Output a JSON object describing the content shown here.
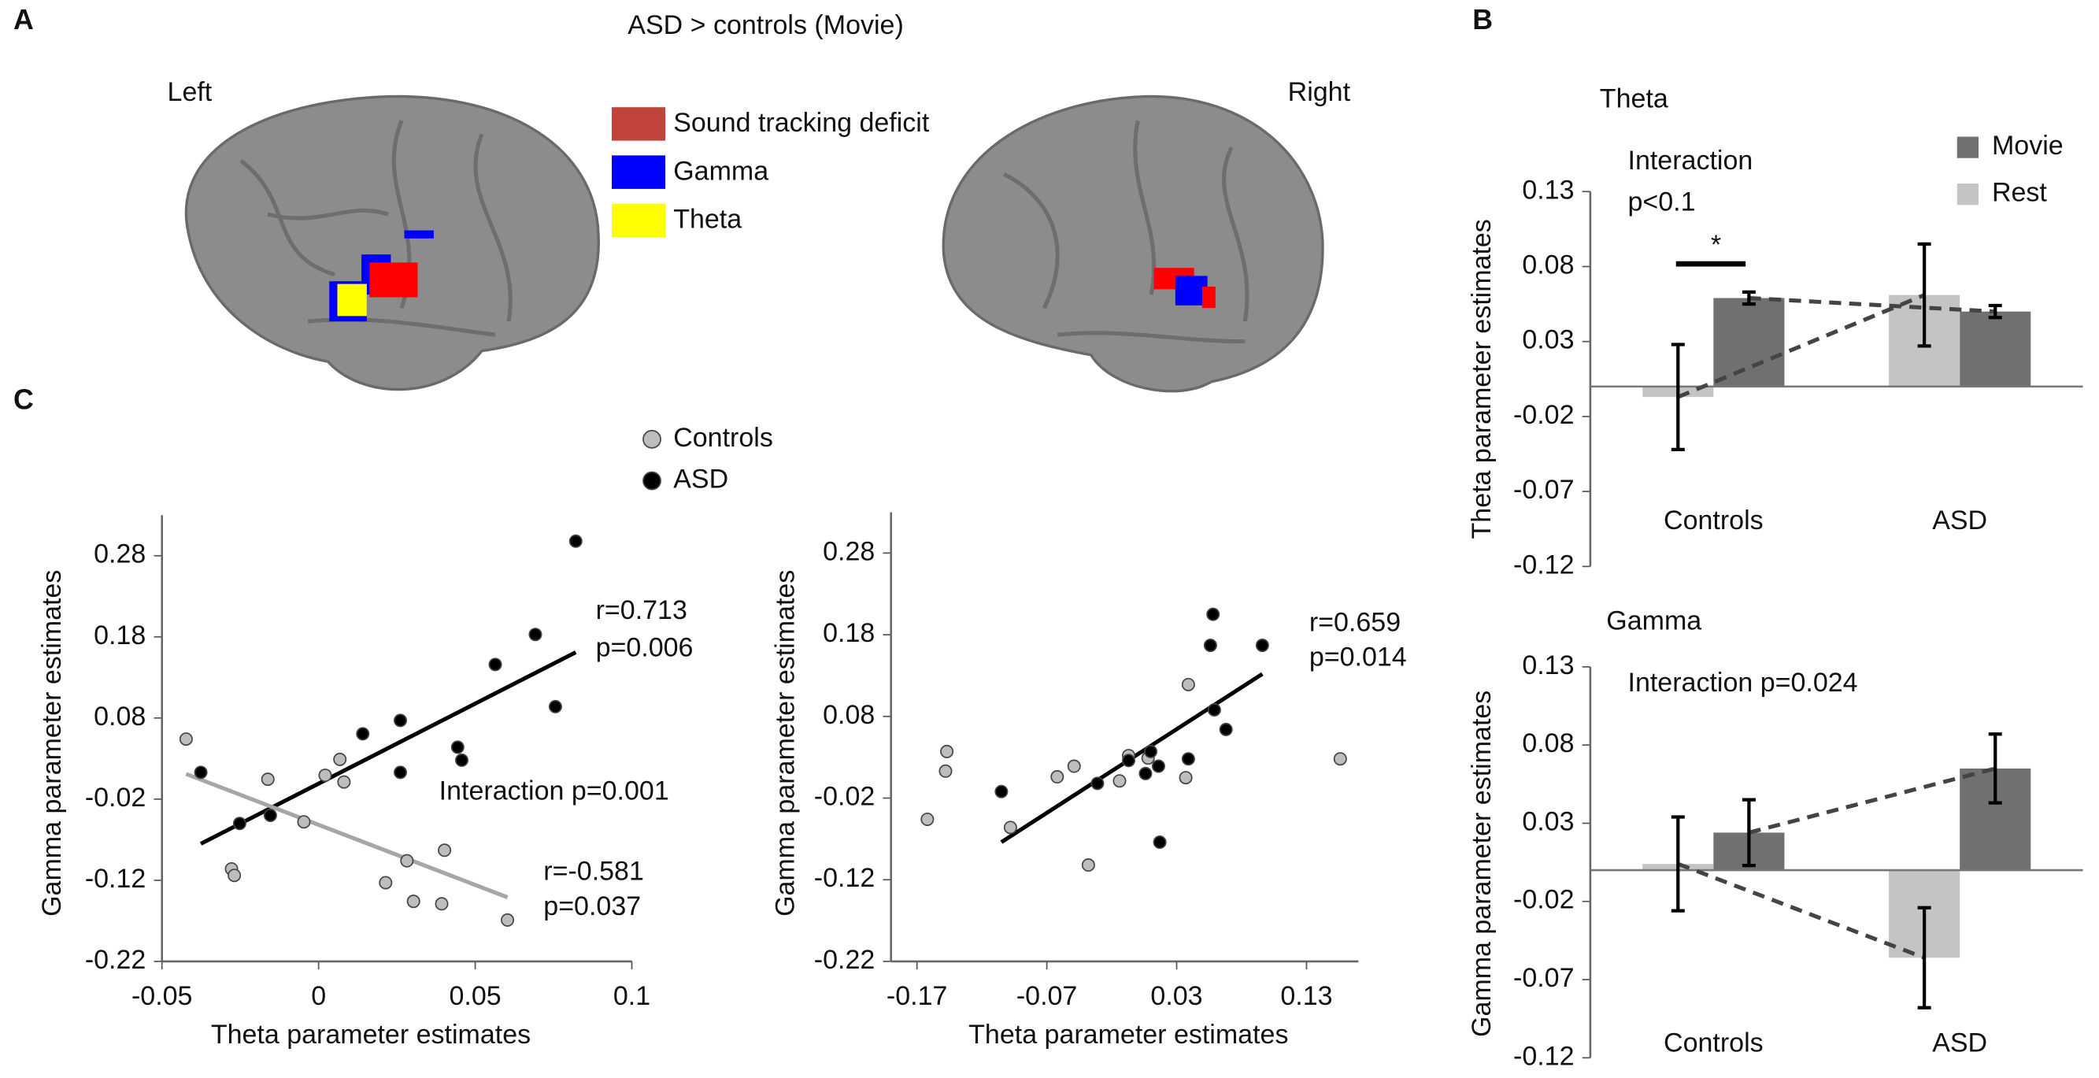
{
  "panel_a": {
    "label": "A",
    "title": "ASD > controls (Movie)",
    "left": "Left",
    "right": "Right",
    "legend": [
      {
        "label": "Sound tracking deficit",
        "color": "#c0443c"
      },
      {
        "label": "Gamma",
        "color": "#0000ff"
      },
      {
        "label": "Theta",
        "color": "#ffff00"
      }
    ]
  },
  "panel_labels": {
    "b": "B",
    "c": "C"
  },
  "chart_data": [
    {
      "type": "bar",
      "title": "Theta",
      "y_label": "Theta  parameter estimates",
      "categories": [
        "Controls",
        "ASD"
      ],
      "series": [
        {
          "name": "Movie",
          "color": "#707070",
          "values": [
            0.059,
            0.05
          ],
          "errors": [
            0.004,
            0.004
          ]
        },
        {
          "name": "Rest",
          "color": "#c4c4c4",
          "values": [
            -0.007,
            0.061
          ],
          "errors": [
            0.035,
            0.034
          ]
        }
      ],
      "ylim": [
        -0.12,
        0.13
      ],
      "yticks": [
        -0.12,
        -0.07,
        -0.02,
        0.03,
        0.08,
        0.13
      ],
      "annotations": [
        "Interaction",
        "p<0.1",
        "*"
      ]
    },
    {
      "type": "bar",
      "title": "Gamma",
      "y_label": "Gamma  parameter estimates",
      "categories": [
        "Controls",
        "ASD"
      ],
      "series": [
        {
          "color": "#707070",
          "values": [
            0.024,
            0.065
          ],
          "errors": [
            0.021,
            0.022
          ]
        },
        {
          "color": "#c4c4c4",
          "values": [
            0.004,
            -0.056
          ],
          "errors": [
            0.03,
            0.032
          ]
        }
      ],
      "ylim": [
        -0.12,
        0.13
      ],
      "yticks": [
        -0.12,
        -0.07,
        -0.02,
        0.03,
        0.08,
        0.13
      ],
      "annotations": [
        "Interaction  p=0.024"
      ]
    },
    {
      "type": "scatter",
      "x_label": "Theta parameter estimates",
      "y_label": "Gamma parameter estimates",
      "series": [
        {
          "name": "Controls",
          "color": "#bdbdbd",
          "x": [
            -0.0423,
            -0.0278,
            -0.0269,
            -0.0162,
            -0.0047,
            0.0021,
            0.0068,
            0.0081,
            0.0214,
            0.0282,
            0.0303,
            0.0402,
            0.0393,
            0.0603
          ],
          "values": [
            0.054,
            -0.106,
            -0.114,
            0.0045,
            -0.048,
            0.0094,
            0.029,
            0.0011,
            -0.123,
            -0.096,
            -0.146,
            -0.083,
            -0.149,
            -0.169
          ]
        },
        {
          "name": "ASD",
          "color": "#000000",
          "x": [
            -0.0376,
            -0.0252,
            -0.0154,
            0.0141,
            0.0261,
            0.0261,
            0.0444,
            0.0457,
            0.0564,
            0.0692,
            0.0756,
            0.0821
          ],
          "values": [
            0.013,
            -0.05,
            -0.04,
            0.0605,
            0.077,
            0.013,
            0.044,
            0.028,
            0.146,
            0.183,
            0.094,
            0.298
          ]
        }
      ],
      "fit_lines": [
        {
          "color": "#000000",
          "x": [
            -0.0376,
            0.0821
          ],
          "values": [
            -0.075,
            0.161
          ]
        },
        {
          "color": "#a6a6a6",
          "x": [
            -0.0423,
            0.0603
          ],
          "values": [
            0.011,
            -0.141
          ]
        }
      ],
      "xlim": [
        -0.05,
        0.1
      ],
      "xticks": [
        -0.05,
        0,
        0.05,
        0.1
      ],
      "ylim": [
        -0.22,
        0.33
      ],
      "yticks": [
        -0.22,
        -0.12,
        -0.02,
        0.08,
        0.18,
        0.28
      ],
      "annotations": [
        "r=0.713",
        "p=0.006",
        "Interaction  p=0.001",
        "r=-0.581",
        "p=0.037"
      ]
    },
    {
      "type": "scatter",
      "x_label": "Theta parameter estimates",
      "y_label": "Gamma parameter estimates",
      "series": [
        {
          "color": "#bdbdbd",
          "x": [
            -0.162,
            -0.147,
            -0.148,
            -0.098,
            -0.062,
            -0.049,
            -0.038,
            -0.014,
            -0.007,
            0.008,
            0.037,
            0.039,
            0.156
          ],
          "values": [
            -0.046,
            0.037,
            0.013,
            -0.056,
            0.006,
            0.019,
            -0.102,
            0.001,
            0.032,
            0.029,
            0.005,
            0.119,
            0.028
          ]
        },
        {
          "color": "#000000",
          "x": [
            -0.105,
            -0.031,
            -0.007,
            0.006,
            0.017,
            0.01,
            0.016,
            0.039,
            0.056,
            0.058,
            0.059,
            0.068,
            0.096
          ],
          "values": [
            -0.012,
            -0.002,
            0.026,
            0.01,
            -0.074,
            0.037,
            0.019,
            0.028,
            0.167,
            0.205,
            0.088,
            0.064,
            0.167
          ]
        }
      ],
      "fit_lines": [
        {
          "color": "#000000",
          "x": [
            -0.105,
            0.096
          ],
          "values": [
            -0.074,
            0.132
          ]
        }
      ],
      "xlim": [
        -0.19,
        0.17
      ],
      "xticks": [
        -0.17,
        -0.07,
        0.03,
        0.13
      ],
      "ylim": [
        -0.22,
        0.33
      ],
      "yticks": [
        -0.22,
        -0.12,
        -0.02,
        0.08,
        0.18,
        0.28
      ],
      "annotations": [
        "r=0.659",
        "p=0.014"
      ]
    }
  ]
}
